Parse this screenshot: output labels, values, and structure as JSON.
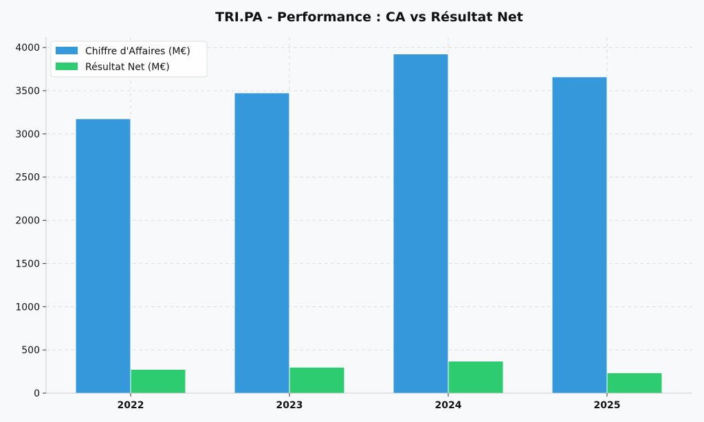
{
  "chart_data": {
    "type": "bar",
    "title": "TRI.PA - Performance : CA vs Résultat Net",
    "xlabel": "",
    "ylabel": "",
    "categories": [
      "2022",
      "2023",
      "2024",
      "2025"
    ],
    "series": [
      {
        "name": "Chiffre d'Affaires (M€)",
        "color": "#3498db",
        "values": [
          3175,
          3475,
          3925,
          3660
        ]
      },
      {
        "name": "Résultat Net (M€)",
        "color": "#2ecc71",
        "values": [
          275,
          300,
          370,
          235
        ]
      }
    ],
    "ylim": [
      0,
      4120
    ],
    "yticks": [
      0,
      500,
      1000,
      1500,
      2000,
      2500,
      3000,
      3500,
      4000
    ],
    "grid": true,
    "legend_position": "top-left"
  }
}
